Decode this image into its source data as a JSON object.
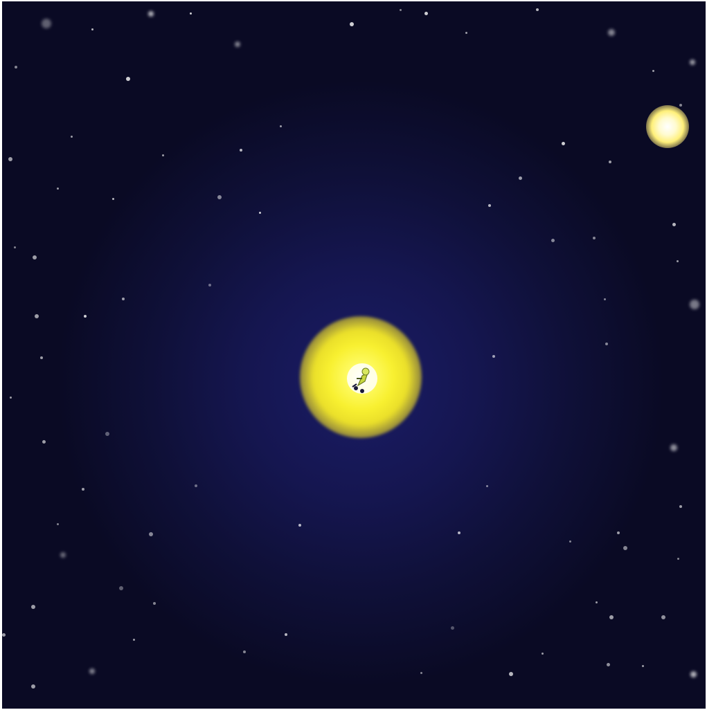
{
  "scene": {
    "background_color": "#0a0a24",
    "glow_color": "#1a1c66",
    "player": {
      "name_icon": "player-character-icon",
      "orb_color": "#f8f030"
    },
    "collectible": {
      "name_icon": "glowing-orb-icon",
      "color": "#fff07a"
    },
    "star_color": "#ffffff"
  }
}
